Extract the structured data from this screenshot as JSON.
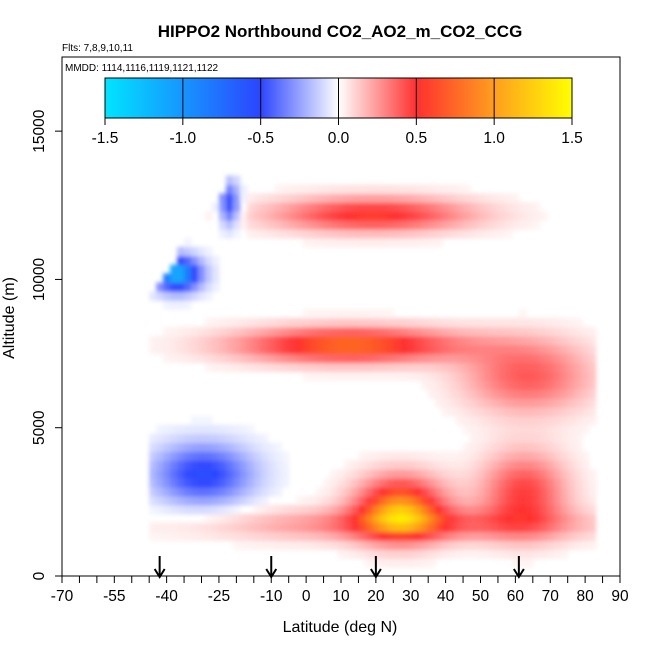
{
  "chart_data": {
    "type": "heatmap",
    "title": "HIPPO2 Northbound CO2_AO2_m_CO2_CCG",
    "flights_note": "Flts: 7,8,9,10,11",
    "dates_note": "MMDD: 1114,1116,1119,1121,1122",
    "xlabel": "Latitude (deg N)",
    "ylabel": "Altitude (m)",
    "xlim": [
      -70,
      90
    ],
    "ylim": [
      0,
      17500
    ],
    "x_ticks": [
      -70,
      -55,
      -40,
      -25,
      -10,
      0,
      10,
      20,
      30,
      40,
      50,
      60,
      70,
      80,
      90
    ],
    "x_tick_labels": [
      "-70",
      "-55",
      "-40",
      "-25",
      "-10",
      "0",
      "10",
      "20",
      "30",
      "40",
      "50",
      "60",
      "70",
      "80",
      "90"
    ],
    "x_minor_ticks": [
      -65,
      -60,
      -50,
      -45,
      -35,
      -30,
      -20,
      -15,
      -5,
      5,
      15,
      25,
      35,
      45,
      55,
      65,
      75,
      85
    ],
    "y_ticks": [
      0,
      5000,
      10000,
      15000
    ],
    "y_tick_labels": [
      "0",
      "5000",
      "10000",
      "15000"
    ],
    "colorbar": {
      "range": [
        -1.5,
        1.5
      ],
      "ticks": [
        -1.5,
        -1.0,
        -0.5,
        0.0,
        0.5,
        1.0,
        1.5
      ],
      "tick_labels": [
        "-1.5",
        "-1.0",
        "-0.5",
        "0.0",
        "0.5",
        "1.0",
        "1.5"
      ],
      "colors": [
        "#00e5ff",
        "#2c45ff",
        "#ffffff",
        "#ff3030",
        "#ffff00"
      ]
    },
    "profile_markers_lat": [
      -42,
      -10,
      20,
      61
    ],
    "regions": [
      {
        "name": "south-negative-upper",
        "lat": [
          -44,
          -30
        ],
        "alt": [
          9600,
          10800
        ],
        "value": -1.3
      },
      {
        "name": "south-negative-edge-top",
        "lat": [
          -24,
          -20
        ],
        "alt": [
          11800,
          13300
        ],
        "value": -0.8
      },
      {
        "name": "south-negative-lower",
        "lat": [
          -44,
          -15
        ],
        "alt": [
          2400,
          4500
        ],
        "value": -0.8
      },
      {
        "name": "upper-positive-band",
        "lat": [
          -10,
          48
        ],
        "alt": [
          11600,
          12800
        ],
        "value": 0.8
      },
      {
        "name": "mid-positive-band",
        "lat": [
          -20,
          45
        ],
        "alt": [
          7200,
          8400
        ],
        "value": 1.0
      },
      {
        "name": "mid-positive-north",
        "lat": [
          45,
          82
        ],
        "alt": [
          5500,
          8000
        ],
        "value": 0.6
      },
      {
        "name": "low-positive-core",
        "lat": [
          14,
          40
        ],
        "alt": [
          1200,
          3400
        ],
        "value": 1.1
      },
      {
        "name": "low-positive-north",
        "lat": [
          50,
          75
        ],
        "alt": [
          1400,
          4200
        ],
        "value": 0.7
      },
      {
        "name": "boundary-layer-band",
        "lat": [
          -25,
          82
        ],
        "alt": [
          1200,
          2300
        ],
        "value": 0.5
      }
    ]
  }
}
